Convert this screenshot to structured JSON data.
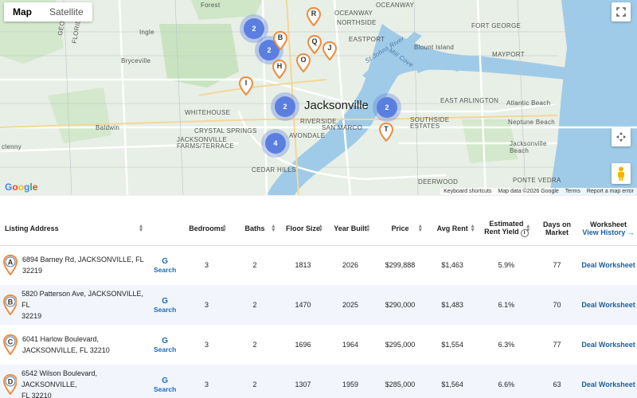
{
  "map": {
    "tabs": [
      {
        "label": "Map",
        "active": true
      },
      {
        "label": "Satellite",
        "active": false
      }
    ],
    "labels": {
      "forest": "Forest",
      "ocean_way": "OCEANWAY",
      "northside": "NORTHSIDE",
      "oceanway_east": "OCEANWAY",
      "eastport": "EASTPORT",
      "blount_island": "Blount Island",
      "george": "GEORGE",
      "florida": "FLORIDA",
      "ingle": "Ingle",
      "bryceville": "Bryceville",
      "fort_george": "FORT GEORGE",
      "mayport": "MAYPORT",
      "st_johns": "St Johns River",
      "mill_cove": "Mill Cove",
      "whitehouse": "WHITEHOUSE",
      "jacksonville": "Jacksonville",
      "east_arlington": "EAST ARLINGTON",
      "atlantic_beach": "Atlantic Beach",
      "neptune_beach": "Neptune Beach",
      "baldwin": "Baldwin",
      "riverside": "RIVERSIDE",
      "san_marco": "SAN MARCO",
      "southside": "SOUTHSIDE ESTATES",
      "crystal_springs": "CRYSTAL SPRINGS",
      "jax_farms": "JACKSONVILLE FARMS/TERRACE",
      "avondale": "AVONDALE",
      "jax_beach": "Jacksonville Beach",
      "glenny": "clenny",
      "cedar_hills": "CEDAR HILLS",
      "ponte_vedra": "PONTE VEDRA",
      "deerwood": "DEERWOOD"
    },
    "clusters": [
      {
        "count": "2"
      },
      {
        "count": "2"
      },
      {
        "count": "2"
      },
      {
        "count": "2"
      },
      {
        "count": "4"
      }
    ],
    "pins": [
      "R",
      "B",
      "Q",
      "J",
      "O",
      "H",
      "I",
      "T"
    ],
    "attribution": {
      "google": "Google",
      "shortcuts": "Keyboard shortcuts",
      "map_data": "Map data ©2026 Google",
      "terms": "Terms",
      "report": "Report a map error"
    },
    "colors": {
      "water": "#9fcbe8",
      "land": "#e8efe6",
      "park": "#c9e3c0",
      "road": "#ffffff",
      "cluster": "#5b7fe0",
      "pin_orange": "#f08a3c"
    }
  },
  "table": {
    "headers": {
      "address": "Listing Address",
      "bedrooms": "Bedrooms",
      "baths": "Baths",
      "floor_size": "Floor Size",
      "year_built": "Year Built",
      "price": "Price",
      "avg_rent": "Avg Rent",
      "yield_line1": "Estimated",
      "yield_line2": "Rent Yield",
      "dom_line1": "Days on",
      "dom_line2": "Market",
      "worksheet": "Worksheet",
      "view_history": "View History →"
    },
    "search_label": "Search",
    "worksheet_label": "Deal Worksheet",
    "rows": [
      {
        "marker": "A",
        "addr1": "6894 Barney Rd, JACKSONVILLE, FL",
        "addr2": "32219",
        "bedrooms": "3",
        "baths": "2",
        "floor": "1813",
        "year": "2026",
        "price": "$299,888",
        "rent": "$1,463",
        "yield": "5.9%",
        "dom": "77"
      },
      {
        "marker": "B",
        "addr1": "5820 Patterson Ave, JACKSONVILLE, FL",
        "addr2": "32219",
        "bedrooms": "3",
        "baths": "2",
        "floor": "1470",
        "year": "2025",
        "price": "$290,000",
        "rent": "$1,483",
        "yield": "6.1%",
        "dom": "70"
      },
      {
        "marker": "C",
        "addr1": "6041 Harlow Boulevard,",
        "addr2": "JACKSONVILLE, FL 32210",
        "bedrooms": "3",
        "baths": "2",
        "floor": "1696",
        "year": "1964",
        "price": "$295,000",
        "rent": "$1,554",
        "yield": "6.3%",
        "dom": "77"
      },
      {
        "marker": "D",
        "addr1": "6542 Wilson Boulevard, JACKSONVILLE,",
        "addr2": "FL 32210",
        "bedrooms": "3",
        "baths": "2",
        "floor": "1307",
        "year": "1959",
        "price": "$285,000",
        "rent": "$1,564",
        "yield": "6.6%",
        "dom": "63"
      }
    ]
  }
}
